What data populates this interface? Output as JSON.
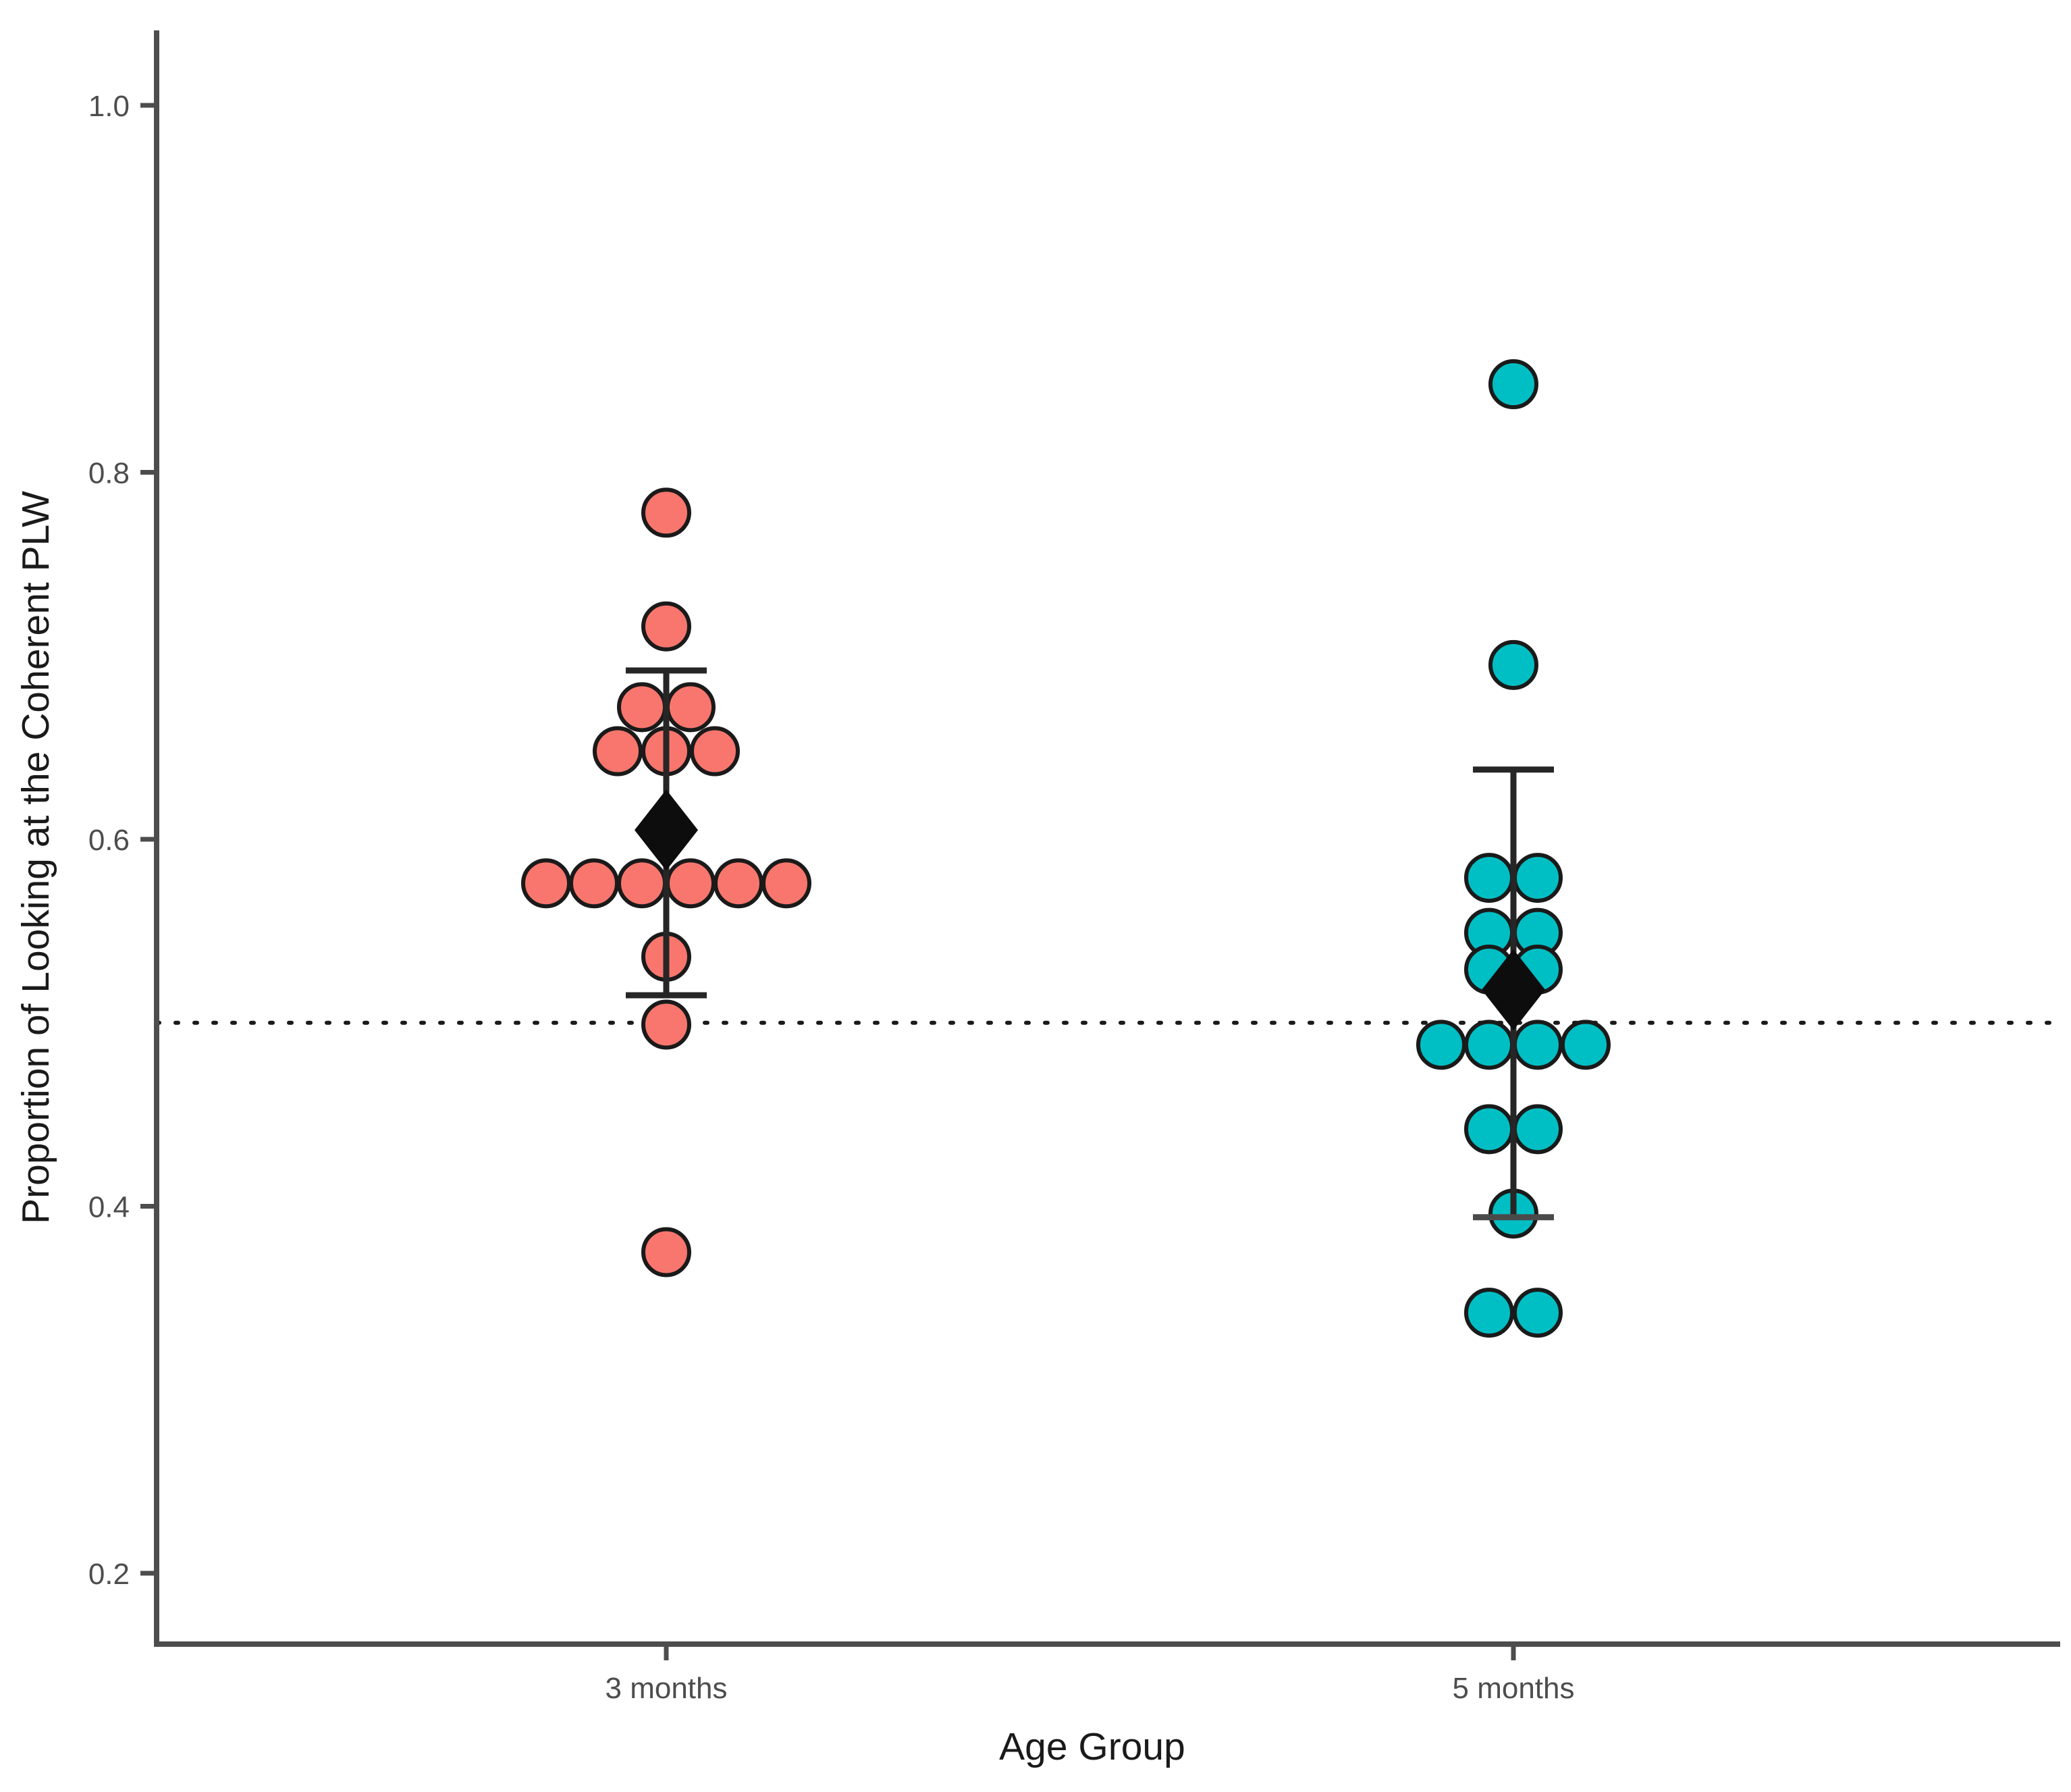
{
  "chart_data": {
    "type": "scatter",
    "subtype": "grouped-dot-plot-with-mean-and-error-bars",
    "title": "",
    "xlabel": "Age Group",
    "ylabel": "Proportion of Looking at the Coherent PLW",
    "x_categories": [
      "3 months",
      "5 months"
    ],
    "y_ticks": [
      "1.0",
      "0.8",
      "0.6",
      "0.4",
      "0.2"
    ],
    "y_tick_values": [
      1.0,
      0.8,
      0.6,
      0.4,
      0.2
    ],
    "ylim": [
      0.16,
      1.04
    ],
    "grid": "off",
    "legend": "none",
    "reference_line_y": 0.5,
    "reference_line_style": "dotted",
    "mean_marker": "black-diamond",
    "colors": {
      "group_3_months": "#F8766D",
      "group_5_months": "#00BFC4",
      "point_outline": "#1A1A1A",
      "error_bar": "#262626",
      "mean_diamond": "#0D0D0D",
      "axis_line": "#4D4D4D",
      "tick_label": "#4D4D4D",
      "axis_title": "#1A1A1A",
      "background": "#FFFFFF"
    },
    "groups": [
      {
        "label": "3 months",
        "point_color": "#F8766D",
        "mean": 0.605,
        "error_high": 0.692,
        "error_low": 0.515,
        "points": [
          {
            "y": 0.778,
            "dx": 0
          },
          {
            "y": 0.716,
            "dx": 0
          },
          {
            "y": 0.672,
            "dx": -36
          },
          {
            "y": 0.672,
            "dx": 36
          },
          {
            "y": 0.648,
            "dx": -72
          },
          {
            "y": 0.648,
            "dx": 0
          },
          {
            "y": 0.648,
            "dx": 72
          },
          {
            "y": 0.576,
            "dx": -178
          },
          {
            "y": 0.576,
            "dx": -107
          },
          {
            "y": 0.576,
            "dx": -36
          },
          {
            "y": 0.576,
            "dx": 36
          },
          {
            "y": 0.576,
            "dx": 107
          },
          {
            "y": 0.576,
            "dx": 178
          },
          {
            "y": 0.536,
            "dx": 0
          },
          {
            "y": 0.499,
            "dx": 0
          },
          {
            "y": 0.375,
            "dx": 0
          }
        ]
      },
      {
        "label": "5 months",
        "point_color": "#00BFC4",
        "mean": 0.518,
        "error_high": 0.638,
        "error_low": 0.394,
        "points": [
          {
            "y": 0.848,
            "dx": 0
          },
          {
            "y": 0.695,
            "dx": 0
          },
          {
            "y": 0.579,
            "dx": -36
          },
          {
            "y": 0.579,
            "dx": 36
          },
          {
            "y": 0.549,
            "dx": -36
          },
          {
            "y": 0.549,
            "dx": 36
          },
          {
            "y": 0.529,
            "dx": -36
          },
          {
            "y": 0.529,
            "dx": 36
          },
          {
            "y": 0.488,
            "dx": -107
          },
          {
            "y": 0.488,
            "dx": -36
          },
          {
            "y": 0.488,
            "dx": 36
          },
          {
            "y": 0.488,
            "dx": 107
          },
          {
            "y": 0.442,
            "dx": -36
          },
          {
            "y": 0.442,
            "dx": 36
          },
          {
            "y": 0.396,
            "dx": 0
          },
          {
            "y": 0.342,
            "dx": -36
          },
          {
            "y": 0.342,
            "dx": 36
          }
        ]
      }
    ]
  }
}
